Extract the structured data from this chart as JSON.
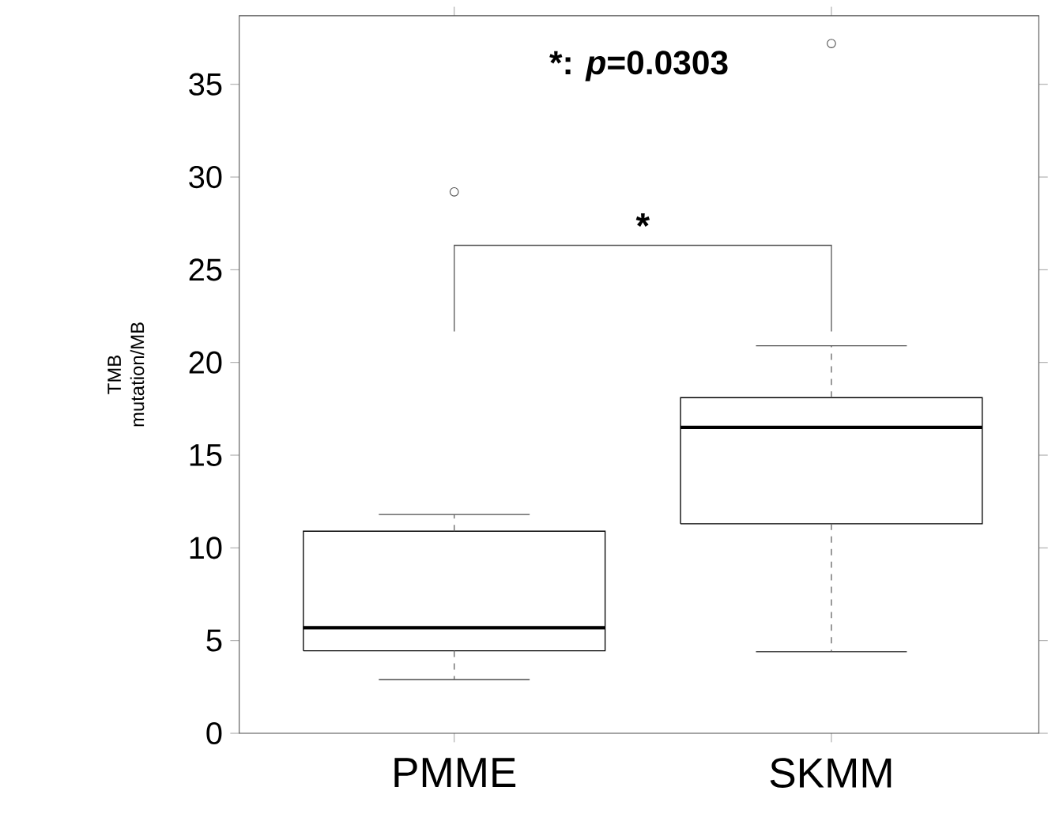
{
  "chart_data": {
    "type": "box",
    "ylabel": "TMB mutation/MB",
    "categories": [
      "PMME",
      "SKMM"
    ],
    "boxes": [
      {
        "low": 2.9,
        "q1": 4.45,
        "median": 5.7,
        "q3": 10.9,
        "high": 11.8,
        "outliers": [
          29.2
        ]
      },
      {
        "low": 4.4,
        "q1": 11.3,
        "median": 16.5,
        "q3": 18.1,
        "high": 20.9,
        "outliers": [
          37.2
        ]
      }
    ],
    "ylim": [
      0,
      38.7
    ],
    "yticks": [
      0,
      5,
      10,
      15,
      20,
      25,
      30,
      35
    ],
    "annotations": [
      "*",
      "*: *p*=0.0303"
    ],
    "grid": false
  }
}
